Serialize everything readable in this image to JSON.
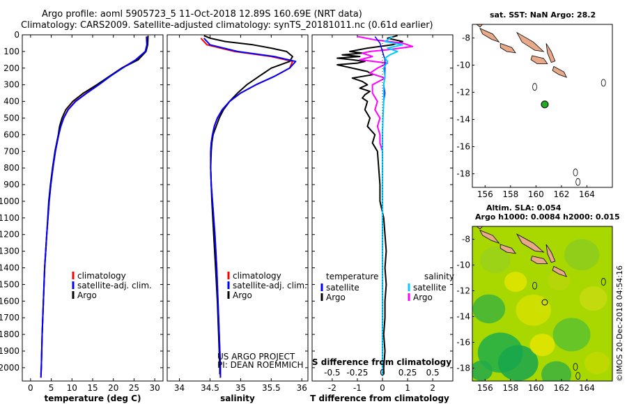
{
  "header": {
    "title_line1": "Argo profile: aoml 5905723_5 11-Oct-2018 12.89S 160.69E (NRT data)",
    "title_line2": "Climatology: CARS2009. Satellite-adjusted climatology: synTS_20181011.nc (0.61d earlier)"
  },
  "colors": {
    "climatology": "#ff0000",
    "satellite": "#0000ff",
    "argo": "#000000",
    "sat_salinity": "#00ccff",
    "argo_salinity": "#ff00ff",
    "dot": "#22aa22",
    "land": "#e8a88a"
  },
  "chart_data": [
    {
      "type": "line",
      "name": "temperature-profile",
      "xlabel": "temperature (deg C)",
      "xlim": [
        -2,
        32
      ],
      "ylim": [
        2080,
        0
      ],
      "y_inverted": true,
      "xticks": [
        0,
        5,
        10,
        15,
        20,
        25,
        30
      ],
      "yticks": [
        0,
        100,
        200,
        300,
        400,
        500,
        600,
        700,
        800,
        900,
        1000,
        1100,
        1200,
        1300,
        1400,
        1500,
        1600,
        1700,
        1800,
        1900,
        2000
      ],
      "legend": [
        "climatology",
        "satellite-adj. clim.",
        "Argo"
      ],
      "series": [
        {
          "name": "climatology",
          "y": [
            10,
            60,
            100,
            150,
            200,
            250,
            300,
            350,
            400,
            450,
            500,
            550,
            600,
            650,
            700,
            800,
            900,
            1000,
            1200,
            1400,
            1600,
            1800,
            2000,
            2060
          ],
          "x": [
            28.3,
            28.2,
            27.8,
            25.5,
            22,
            19,
            16.2,
            13.5,
            10.8,
            9,
            8,
            7.3,
            6.8,
            6.4,
            6,
            5.4,
            4.9,
            4.5,
            3.9,
            3.4,
            3.1,
            2.8,
            2.6,
            2.5
          ]
        },
        {
          "name": "satellite-adj. clim.",
          "y": [
            10,
            60,
            100,
            150,
            200,
            250,
            300,
            350,
            400,
            450,
            500,
            550,
            600,
            650,
            700,
            800,
            900,
            1000,
            1200,
            1400,
            1600,
            1800,
            2000,
            2060
          ],
          "x": [
            28,
            28.1,
            27.7,
            25.4,
            22.2,
            19.2,
            16.5,
            13.6,
            10.9,
            9.1,
            8,
            7.3,
            6.8,
            6.4,
            6,
            5.4,
            4.9,
            4.5,
            3.9,
            3.4,
            3.1,
            2.8,
            2.6,
            2.5
          ]
        },
        {
          "name": "Argo",
          "y": [
            5,
            60,
            100,
            150,
            200,
            250,
            300,
            350,
            400,
            450,
            500,
            550,
            600,
            650,
            700,
            800,
            900,
            1000,
            1200,
            1400,
            1600,
            1800,
            2000,
            2040
          ],
          "x": [
            28.4,
            28.3,
            27.9,
            26,
            22,
            19,
            16,
            12.8,
            10.2,
            8.5,
            7.6,
            7,
            6.7,
            6.3,
            5.9,
            5.3,
            4.8,
            4.4,
            3.9,
            3.4,
            3.1,
            2.8,
            2.6,
            2.5
          ]
        }
      ]
    },
    {
      "type": "line",
      "name": "salinity-profile",
      "xlabel": "salinity",
      "xlim": [
        33.8,
        36.1
      ],
      "ylim": [
        2080,
        0
      ],
      "y_inverted": true,
      "xticks": [
        34,
        34.5,
        35,
        35.5,
        36
      ],
      "legend": [
        "climatology",
        "satellite-adj. clim.",
        "Argo"
      ],
      "credit": [
        "US ARGO PROJECT",
        "PI: DEAN ROEMMICH"
      ],
      "series": [
        {
          "name": "climatology",
          "y": [
            20,
            60,
            100,
            130,
            160,
            200,
            250,
            300,
            350,
            400,
            450,
            500,
            550,
            600,
            650,
            700,
            800,
            900,
            1000,
            1200,
            1400,
            1600,
            1800,
            2000,
            2060
          ],
          "x": [
            34.35,
            34.45,
            34.9,
            35.5,
            35.85,
            35.8,
            35.55,
            35.25,
            35.0,
            34.82,
            34.7,
            34.62,
            34.57,
            34.54,
            34.52,
            34.51,
            34.51,
            34.52,
            34.54,
            34.58,
            34.61,
            34.63,
            34.65,
            34.67,
            34.67
          ]
        },
        {
          "name": "satellite-adj. clim.",
          "y": [
            20,
            60,
            100,
            130,
            160,
            200,
            250,
            300,
            350,
            400,
            450,
            500,
            550,
            600,
            650,
            700,
            800,
            900,
            1000,
            1200,
            1400,
            1600,
            1800,
            2000,
            2060
          ],
          "x": [
            34.4,
            34.5,
            34.95,
            35.55,
            35.9,
            35.8,
            35.55,
            35.25,
            35.0,
            34.82,
            34.7,
            34.62,
            34.57,
            34.54,
            34.52,
            34.51,
            34.51,
            34.52,
            34.54,
            34.58,
            34.61,
            34.63,
            34.65,
            34.67,
            34.67
          ]
        },
        {
          "name": "Argo",
          "y": [
            5,
            20,
            40,
            60,
            80,
            100,
            130,
            160,
            200,
            250,
            300,
            350,
            400,
            450,
            500,
            550,
            600,
            650,
            700,
            800,
            900,
            1000,
            1200,
            1400,
            1600,
            1800,
            2000,
            2040
          ],
          "x": [
            34.4,
            34.5,
            34.75,
            35.2,
            35.5,
            35.75,
            35.85,
            35.8,
            35.5,
            35.3,
            35.1,
            34.95,
            34.82,
            34.72,
            34.65,
            34.6,
            34.55,
            34.53,
            34.52,
            34.51,
            34.52,
            34.53,
            34.56,
            34.59,
            34.62,
            34.64,
            34.66,
            34.66
          ]
        }
      ]
    },
    {
      "type": "line",
      "name": "difference-profile",
      "xlabel": "T difference from climatology",
      "top_xlabel": "S difference from climatology",
      "xlim": [
        -2.8,
        2.8
      ],
      "ylim": [
        2080,
        0
      ],
      "y_inverted": true,
      "xticks": [
        -2,
        -1,
        0,
        1,
        2
      ],
      "top_ticks": [
        {
          "label": "-0.5",
          "value": -2
        },
        {
          "label": "-0.25",
          "value": -1
        },
        {
          "label": "0",
          "value": 0
        },
        {
          "label": "0.25",
          "value": 1
        },
        {
          "label": "0.5",
          "value": 2
        }
      ],
      "legend_temperature": {
        "heading": "temperature",
        "items": [
          "satellite",
          "Argo"
        ]
      },
      "legend_salinity": {
        "heading": "salinity",
        "items": [
          "satellite",
          "Argo"
        ]
      },
      "series": [
        {
          "name": "T satellite",
          "y": [
            10,
            50,
            100,
            150,
            200,
            250,
            300,
            350,
            400,
            500,
            600,
            700,
            800,
            1000,
            1200,
            1400,
            1600,
            1800,
            2000,
            2050
          ],
          "x": [
            -0.3,
            -0.1,
            0,
            0.1,
            0.1,
            0.1,
            0.05,
            0.1,
            0.05,
            0.02,
            0,
            0,
            0,
            0,
            0,
            0,
            0,
            0,
            0,
            0
          ]
        },
        {
          "name": "T Argo",
          "y": [
            5,
            20,
            40,
            60,
            80,
            100,
            110,
            120,
            130,
            140,
            150,
            160,
            170,
            180,
            200,
            220,
            240,
            260,
            280,
            300,
            320,
            340,
            360,
            380,
            400,
            450,
            500,
            550,
            600,
            650,
            700,
            800,
            900,
            1000,
            1100,
            1200,
            1300,
            1400,
            1500,
            1600,
            1700,
            1800,
            1900,
            2000,
            2040
          ],
          "x": [
            0.6,
            0.2,
            0.8,
            0.4,
            -0.6,
            -1.3,
            -0.8,
            -1.6,
            -0.9,
            -1.8,
            -1.2,
            -0.7,
            -1,
            -1.8,
            -1.2,
            -0.6,
            -0.4,
            -1.2,
            -0.8,
            -0.6,
            -0.9,
            -0.5,
            -0.7,
            -0.8,
            -0.6,
            -0.7,
            -0.5,
            -0.6,
            -0.3,
            -0.4,
            -0.2,
            -0.15,
            -0.1,
            -0.1,
            0.05,
            0.1,
            0.15,
            0.1,
            0.15,
            0.1,
            0.1,
            0.05,
            0.1,
            0.05,
            0.05
          ]
        },
        {
          "name": "S satellite",
          "y": [
            10,
            40,
            60,
            80,
            100,
            120,
            140,
            160,
            200,
            250,
            300,
            400,
            500,
            600,
            800,
            1000,
            1200,
            1400,
            1600,
            1800,
            2000,
            2050
          ],
          "x": [
            0.4,
            0.1,
            0.8,
            0.2,
            0.6,
            0.3,
            0.1,
            0.2,
            0.05,
            0.1,
            0.05,
            0.05,
            0.02,
            0,
            0,
            0,
            0,
            0,
            0,
            0,
            0,
            0
          ]
        },
        {
          "name": "S Argo",
          "y": [
            10,
            30,
            50,
            70,
            90,
            100,
            110,
            130,
            150,
            170,
            200,
            230,
            260,
            300,
            350,
            400,
            450,
            500,
            550,
            600,
            650,
            700,
            800,
            1000,
            1200,
            1400,
            1600,
            1800,
            2000,
            2050
          ],
          "x": [
            -1,
            -0.3,
            0.8,
            1.2,
            0.2,
            -0.5,
            -0.8,
            -0.4,
            -0.9,
            0.2,
            -0.2,
            -0.5,
            0.1,
            -0.4,
            -0.4,
            -0.2,
            -0.3,
            -0.1,
            -0.2,
            -0.1,
            -0.1,
            0,
            0,
            0,
            0,
            0,
            0,
            0,
            0,
            0
          ]
        }
      ]
    },
    {
      "type": "scatter",
      "name": "sst-map",
      "title": "sat. SST: NaN Argo: 28.2",
      "xlim": [
        155,
        166
      ],
      "ylim": [
        -19,
        -7
      ],
      "xticks": [
        156,
        158,
        160,
        162,
        164
      ],
      "yticks": [
        -8,
        -10,
        -12,
        -14,
        -16,
        -18
      ],
      "point": {
        "lon": 160.69,
        "lat": -12.89
      }
    },
    {
      "type": "heatmap",
      "name": "sla-map",
      "title_line1": "Altim. SLA: 0.054",
      "title_line2": "Argo h1000: 0.0084 h2000: 0.015",
      "xlim": [
        155,
        166
      ],
      "ylim": [
        -19,
        -7
      ],
      "xticks": [
        156,
        158,
        160,
        162,
        164
      ],
      "yticks": [
        -8,
        -10,
        -12,
        -14,
        -16,
        -18
      ],
      "point": {
        "lon": 160.69,
        "lat": -12.89
      }
    }
  ],
  "footer": {
    "credit": "©IMOS 20-Dec-2018 04:54:16"
  }
}
